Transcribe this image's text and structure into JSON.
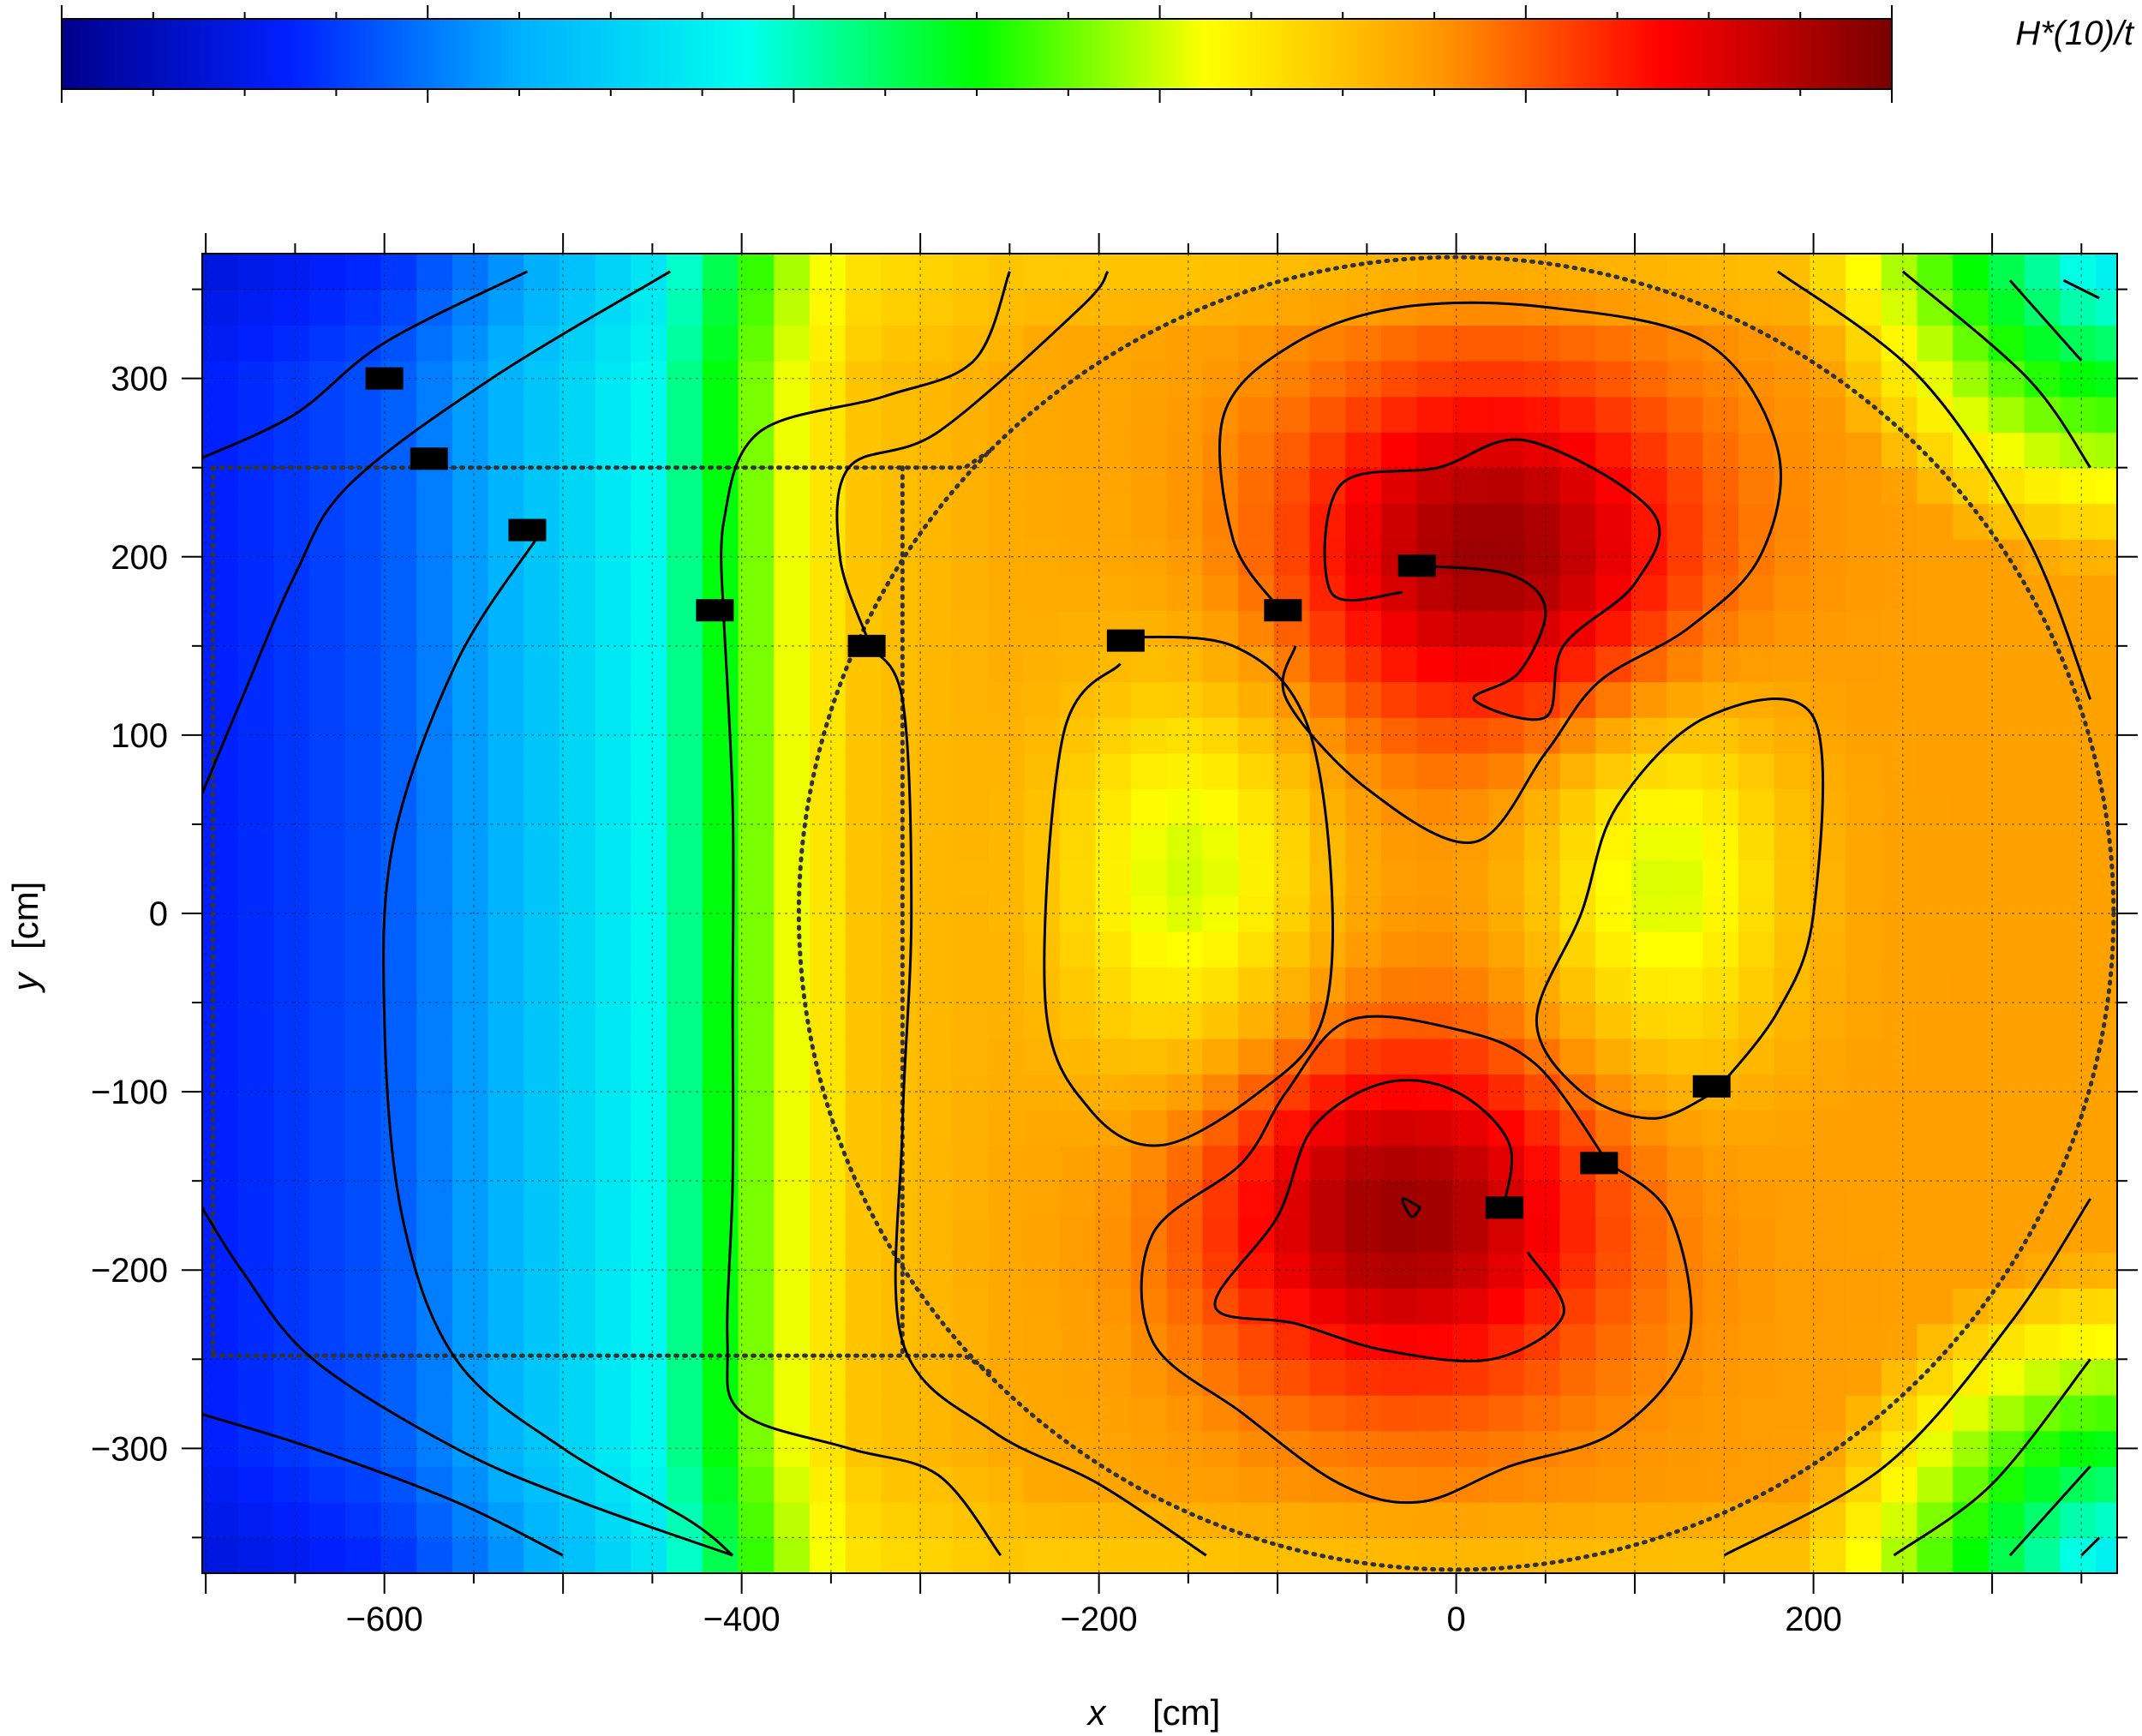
{
  "chart_data": {
    "type": "heatmap",
    "title": "",
    "colorbar": {
      "label": "H*(10)/t",
      "colormap": [
        "#00008a",
        "#0020ff",
        "#00b0ff",
        "#00ffee",
        "#00ff00",
        "#ffff00",
        "#ff9a00",
        "#ff0000",
        "#7a0000"
      ]
    },
    "xlabel": "x",
    "xunit": "[cm]",
    "ylabel": "y",
    "yunit": "[cm]",
    "xlim": [
      -702,
      370
    ],
    "ylim": [
      -370,
      370
    ],
    "x_ticks": [
      -600,
      -400,
      -200,
      0,
      200
    ],
    "x_tick_labels": [
      "−600",
      "−400",
      "−200",
      "0",
      "200"
    ],
    "y_ticks": [
      300,
      200,
      100,
      0,
      -100,
      -200,
      -300
    ],
    "y_tick_labels": [
      "300",
      "200",
      "100",
      "0",
      "−100",
      "−200",
      "−300"
    ],
    "grid": true,
    "grid_x_step": 50,
    "grid_y_step": 50,
    "field": {
      "description_fields": "normalized dose level 0 (dark blue) .. 1 (dark red) as a function of x, y",
      "baseline_x": [
        -702,
        -600,
        -500,
        -450,
        -410,
        -380,
        -330,
        -250,
        0,
        370
      ],
      "baseline_level": [
        0.12,
        0.17,
        0.3,
        0.37,
        0.5,
        0.6,
        0.7,
        0.73,
        0.75,
        0.74
      ],
      "hotspots": [
        {
          "x": 20,
          "y": 205,
          "peak": 0.97
        },
        {
          "x": -30,
          "y": -170,
          "peak": 0.97
        }
      ],
      "yellow_regions": [
        {
          "x": -150,
          "y": 20,
          "level": 0.6
        },
        {
          "x": 115,
          "y": 20,
          "level": 0.6
        }
      ],
      "corner_falloff": [
        {
          "x": 370,
          "y": 370,
          "level": 0.33
        },
        {
          "x": 370,
          "y": -370,
          "level": 0.33
        }
      ]
    },
    "detector_markers": [
      {
        "x": -600,
        "y": 300
      },
      {
        "x": -575,
        "y": 255
      },
      {
        "x": -520,
        "y": 215
      },
      {
        "x": -415,
        "y": 170
      },
      {
        "x": -330,
        "y": 150
      },
      {
        "x": -185,
        "y": 153
      },
      {
        "x": -97,
        "y": 170
      },
      {
        "x": -22,
        "y": 195
      },
      {
        "x": 143,
        "y": -97
      },
      {
        "x": 80,
        "y": -140
      },
      {
        "x": 27,
        "y": -165
      }
    ],
    "dotted_outlines": [
      {
        "kind": "circle",
        "cx": 0,
        "cy": 0,
        "r": 368
      },
      {
        "kind": "polyline",
        "points": [
          [
            -696,
            250
          ],
          [
            -275,
            250
          ],
          [
            -260,
            260
          ]
        ]
      },
      {
        "kind": "polyline",
        "points": [
          [
            -696,
            -248
          ],
          [
            -275,
            -248
          ],
          [
            -260,
            -258
          ]
        ]
      },
      {
        "kind": "polyline",
        "points": [
          [
            -696,
            250
          ],
          [
            -696,
            -248
          ]
        ]
      },
      {
        "kind": "polyline",
        "points": [
          [
            -310,
            250
          ],
          [
            -310,
            -248
          ]
        ]
      }
    ],
    "contours": [
      [
        [
          -703,
          255
        ],
        [
          -650,
          280
        ],
        [
          -600,
          320
        ],
        [
          -520,
          360
        ]
      ],
      [
        [
          -705,
          60
        ],
        [
          -680,
          120
        ],
        [
          -650,
          190
        ],
        [
          -620,
          240
        ],
        [
          -540,
          300
        ],
        [
          -440,
          360
        ]
      ],
      [
        [
          -705,
          -160
        ],
        [
          -680,
          -200
        ],
        [
          -640,
          -250
        ],
        [
          -560,
          -300
        ],
        [
          -490,
          -330
        ],
        [
          -405,
          -360
        ]
      ],
      [
        [
          -705,
          -280
        ],
        [
          -640,
          -300
        ],
        [
          -560,
          -330
        ],
        [
          -500,
          -360
        ]
      ],
      [
        [
          -515,
          210
        ],
        [
          -560,
          140
        ],
        [
          -595,
          40
        ],
        [
          -600,
          -60
        ],
        [
          -590,
          -170
        ],
        [
          -560,
          -250
        ],
        [
          -500,
          -300
        ],
        [
          -430,
          -340
        ],
        [
          -405,
          -360
        ]
      ],
      [
        [
          -410,
          165
        ],
        [
          -405,
          60
        ],
        [
          -405,
          -50
        ],
        [
          -405,
          -150
        ],
        [
          -408,
          -240
        ],
        [
          -400,
          -280
        ],
        [
          -340,
          -300
        ],
        [
          -290,
          -315
        ],
        [
          -255,
          -360
        ]
      ],
      [
        [
          -410,
          165
        ],
        [
          -410,
          220
        ],
        [
          -390,
          270
        ],
        [
          -320,
          290
        ],
        [
          -270,
          310
        ],
        [
          -250,
          360
        ]
      ],
      [
        [
          -330,
          155
        ],
        [
          -345,
          200
        ],
        [
          -340,
          250
        ],
        [
          -290,
          270
        ],
        [
          -210,
          340
        ],
        [
          -195,
          360
        ]
      ],
      [
        [
          -330,
          150
        ],
        [
          -310,
          120
        ],
        [
          -305,
          0
        ],
        [
          -310,
          -120
        ],
        [
          -310,
          -240
        ],
        [
          -260,
          -290
        ],
        [
          -200,
          -320
        ],
        [
          -140,
          -360
        ]
      ],
      [
        [
          -188,
          140
        ],
        [
          -220,
          100
        ],
        [
          -230,
          -50
        ],
        [
          -205,
          -110
        ],
        [
          -165,
          -130
        ],
        [
          -110,
          -100
        ],
        [
          -75,
          -60
        ],
        [
          -70,
          20
        ],
        [
          -85,
          110
        ],
        [
          -125,
          150
        ],
        [
          -188,
          155
        ]
      ],
      [
        [
          -100,
          172
        ],
        [
          -125,
          210
        ],
        [
          -130,
          280
        ],
        [
          -90,
          320
        ],
        [
          -30,
          340
        ],
        [
          50,
          340
        ],
        [
          140,
          320
        ],
        [
          180,
          260
        ],
        [
          170,
          200
        ],
        [
          130,
          160
        ],
        [
          80,
          130
        ],
        [
          50,
          90
        ],
        [
          10,
          40
        ],
        [
          -50,
          70
        ],
        [
          -95,
          120
        ],
        [
          -90,
          150
        ]
      ],
      [
        [
          -30,
          180
        ],
        [
          -70,
          180
        ],
        [
          -65,
          240
        ],
        [
          -10,
          250
        ],
        [
          40,
          265
        ],
        [
          110,
          225
        ],
        [
          100,
          185
        ],
        [
          60,
          150
        ],
        [
          50,
          110
        ],
        [
          10,
          120
        ],
        [
          35,
          135
        ],
        [
          50,
          170
        ],
        [
          30,
          190
        ],
        [
          -20,
          195
        ]
      ],
      [
        [
          145,
          -100
        ],
        [
          180,
          -55
        ],
        [
          200,
          0
        ],
        [
          200,
          110
        ],
        [
          140,
          110
        ],
        [
          90,
          60
        ],
        [
          70,
          0
        ],
        [
          45,
          -60
        ],
        [
          70,
          -100
        ],
        [
          110,
          -115
        ],
        [
          145,
          -100
        ]
      ],
      [
        [
          85,
          -140
        ],
        [
          120,
          -170
        ],
        [
          130,
          -240
        ],
        [
          90,
          -290
        ],
        [
          30,
          -310
        ],
        [
          -20,
          -330
        ],
        [
          -65,
          -320
        ],
        [
          -120,
          -280
        ],
        [
          -170,
          -240
        ],
        [
          -170,
          -180
        ],
        [
          -120,
          -140
        ],
        [
          -95,
          -100
        ],
        [
          -60,
          -60
        ],
        [
          0,
          -65
        ],
        [
          45,
          -85
        ],
        [
          85,
          -140
        ]
      ],
      [
        [
          25,
          -170
        ],
        [
          30,
          -130
        ],
        [
          0,
          -100
        ],
        [
          -40,
          -95
        ],
        [
          -80,
          -120
        ],
        [
          -100,
          -170
        ],
        [
          -135,
          -220
        ],
        [
          -90,
          -230
        ],
        [
          -40,
          -245
        ],
        [
          20,
          -250
        ],
        [
          60,
          -225
        ],
        [
          40,
          -190
        ]
      ],
      [
        [
          -20,
          -165
        ],
        [
          -30,
          -160
        ],
        [
          -25,
          -170
        ],
        [
          -20,
          -165
        ]
      ],
      [
        [
          180,
          360
        ],
        [
          260,
          300
        ],
        [
          320,
          210
        ],
        [
          355,
          120
        ]
      ],
      [
        [
          250,
          360
        ],
        [
          320,
          300
        ],
        [
          355,
          250
        ]
      ],
      [
        [
          310,
          355
        ],
        [
          350,
          310
        ]
      ],
      [
        [
          340,
          355
        ],
        [
          360,
          345
        ]
      ],
      [
        [
          150,
          -360
        ],
        [
          240,
          -310
        ],
        [
          310,
          -230
        ],
        [
          355,
          -160
        ]
      ],
      [
        [
          245,
          -360
        ],
        [
          300,
          -320
        ],
        [
          355,
          -250
        ]
      ],
      [
        [
          310,
          -360
        ],
        [
          355,
          -310
        ]
      ],
      [
        [
          350,
          -360
        ],
        [
          360,
          -350
        ]
      ]
    ]
  }
}
